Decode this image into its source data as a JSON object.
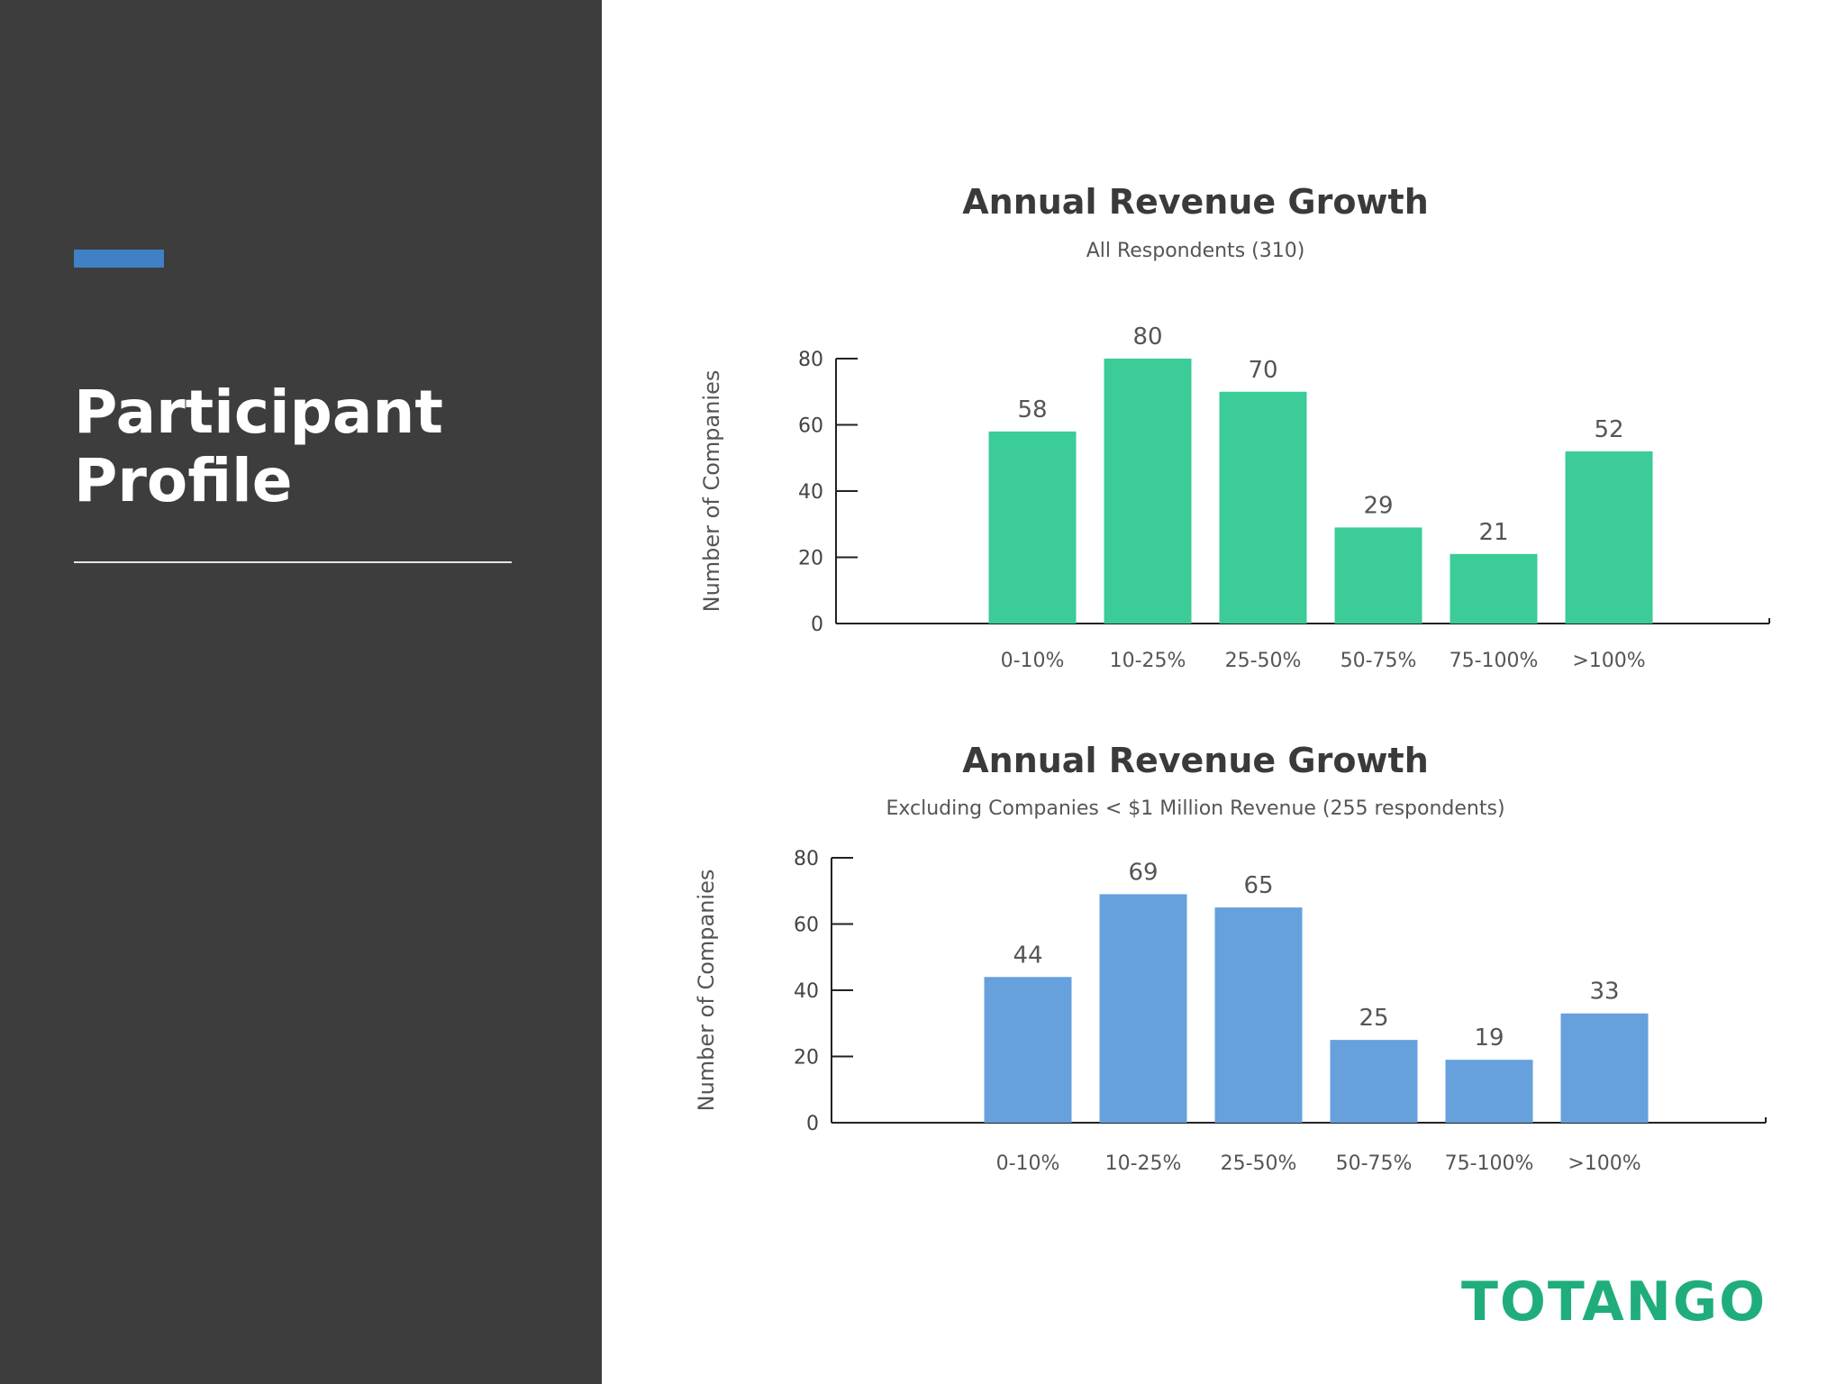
{
  "sidebar": {
    "title_line1": "Participant",
    "title_line2": "Profile",
    "accent_color": "#3f80c6",
    "background_color": "#3d3d3d"
  },
  "logo": {
    "text": "TOTANGO",
    "color": "#1fae7b"
  },
  "chart_data": [
    {
      "type": "bar",
      "title": "Annual Revenue Growth",
      "subtitle": "All Respondents (310)",
      "ylabel": "Number of Companies",
      "xlabel": "",
      "categories": [
        "0-10%",
        "10-25%",
        "25-50%",
        "50-75%",
        "75-100%",
        ">100%"
      ],
      "values": [
        58,
        80,
        70,
        29,
        21,
        52
      ],
      "yticks": [
        0,
        20,
        40,
        60,
        80
      ],
      "ylim": [
        0,
        80
      ],
      "color": "#3bcc98",
      "data_labels": true,
      "grid": false,
      "legend": "none"
    },
    {
      "type": "bar",
      "title": "Annual Revenue Growth",
      "subtitle": "Excluding Companies < $1 Million Revenue (255 respondents)",
      "ylabel": "Number of Companies",
      "xlabel": "",
      "categories": [
        "0-10%",
        "10-25%",
        "25-50%",
        "50-75%",
        "75-100%",
        ">100%"
      ],
      "values": [
        44,
        69,
        65,
        25,
        19,
        33
      ],
      "yticks": [
        0,
        20,
        40,
        60,
        80
      ],
      "ylim": [
        0,
        80
      ],
      "color": "#66a0dd",
      "data_labels": true,
      "grid": false,
      "legend": "none"
    }
  ]
}
